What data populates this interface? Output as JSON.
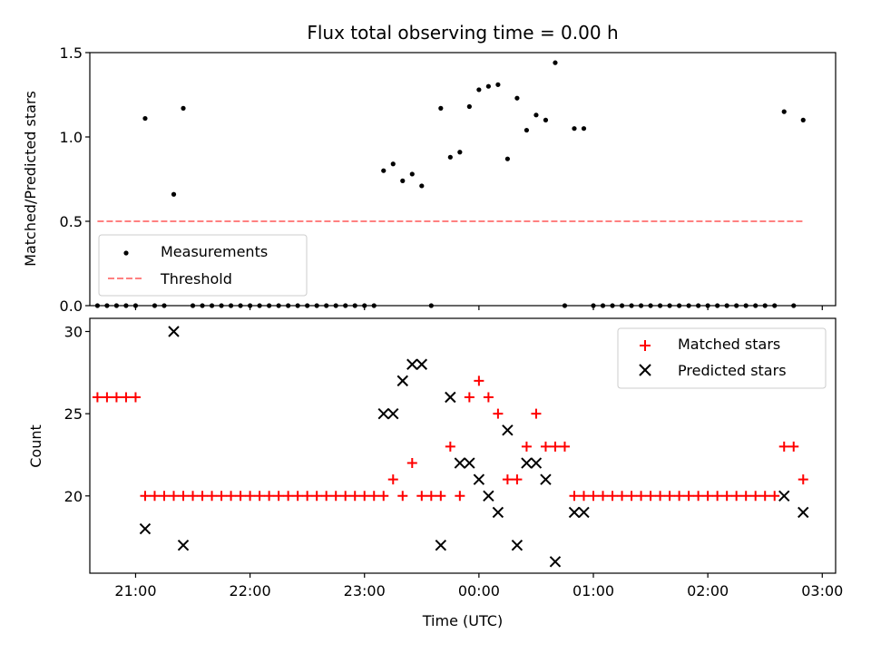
{
  "chart_data": [
    {
      "type": "scatter",
      "title": "Flux total observing time = 0.00 h",
      "ylabel": "Matched/Predicted stars",
      "ylim": [
        0,
        1.5
      ],
      "xlim": [
        "20:36",
        "03:07"
      ],
      "grid": false,
      "legend": {
        "position": "lower-left",
        "entries": [
          "Measurements",
          "Threshold"
        ]
      },
      "yticks": [
        "0.0",
        "0.5",
        "1.0",
        "1.5"
      ],
      "series": [
        {
          "name": "Measurements",
          "marker": "dot",
          "color": "#000000",
          "points": [
            [
              "20:40",
              0
            ],
            [
              "20:45",
              0
            ],
            [
              "20:50",
              0
            ],
            [
              "20:55",
              0
            ],
            [
              "21:00",
              0
            ],
            [
              "21:05",
              1.11
            ],
            [
              "21:10",
              0
            ],
            [
              "21:15",
              0
            ],
            [
              "21:20",
              0.66
            ],
            [
              "21:25",
              1.17
            ],
            [
              "21:30",
              0
            ],
            [
              "21:35",
              0
            ],
            [
              "21:40",
              0
            ],
            [
              "21:45",
              0
            ],
            [
              "21:50",
              0
            ],
            [
              "21:55",
              0
            ],
            [
              "22:00",
              0
            ],
            [
              "22:05",
              0
            ],
            [
              "22:10",
              0
            ],
            [
              "22:15",
              0
            ],
            [
              "22:20",
              0
            ],
            [
              "22:25",
              0
            ],
            [
              "22:30",
              0
            ],
            [
              "22:35",
              0
            ],
            [
              "22:40",
              0
            ],
            [
              "22:45",
              0
            ],
            [
              "22:50",
              0
            ],
            [
              "22:55",
              0
            ],
            [
              "23:00",
              0
            ],
            [
              "23:05",
              0
            ],
            [
              "23:10",
              0.8
            ],
            [
              "23:15",
              0.84
            ],
            [
              "23:20",
              0.74
            ],
            [
              "23:25",
              0.78
            ],
            [
              "23:30",
              0.71
            ],
            [
              "23:35",
              0
            ],
            [
              "23:40",
              1.17
            ],
            [
              "23:45",
              0.88
            ],
            [
              "23:50",
              0.91
            ],
            [
              "23:55",
              1.18
            ],
            [
              "00:00",
              1.28
            ],
            [
              "00:05",
              1.3
            ],
            [
              "00:10",
              1.31
            ],
            [
              "00:15",
              0.87
            ],
            [
              "00:20",
              1.23
            ],
            [
              "00:25",
              1.04
            ],
            [
              "00:30",
              1.13
            ],
            [
              "00:35",
              1.1
            ],
            [
              "00:40",
              1.44
            ],
            [
              "00:45",
              0
            ],
            [
              "00:50",
              1.05
            ],
            [
              "00:55",
              1.05
            ],
            [
              "01:00",
              0
            ],
            [
              "01:05",
              0
            ],
            [
              "01:10",
              0
            ],
            [
              "01:15",
              0
            ],
            [
              "01:20",
              0
            ],
            [
              "01:25",
              0
            ],
            [
              "01:30",
              0
            ],
            [
              "01:35",
              0
            ],
            [
              "01:40",
              0
            ],
            [
              "01:45",
              0
            ],
            [
              "01:50",
              0
            ],
            [
              "01:55",
              0
            ],
            [
              "02:00",
              0
            ],
            [
              "02:05",
              0
            ],
            [
              "02:10",
              0
            ],
            [
              "02:15",
              0
            ],
            [
              "02:20",
              0
            ],
            [
              "02:25",
              0
            ],
            [
              "02:30",
              0
            ],
            [
              "02:35",
              0
            ],
            [
              "02:40",
              1.15
            ],
            [
              "02:45",
              0
            ],
            [
              "02:50",
              1.1
            ]
          ]
        },
        {
          "name": "Threshold",
          "type": "line",
          "style": "dashed",
          "color": "#ff8080",
          "points": [
            [
              "20:40",
              0.5
            ],
            [
              "02:50",
              0.5
            ]
          ]
        }
      ]
    },
    {
      "type": "scatter",
      "xlabel": "Time (UTC)",
      "ylabel": "Count",
      "ylim": [
        15.3,
        30.8
      ],
      "xlim": [
        "20:36",
        "03:07"
      ],
      "grid": false,
      "legend": {
        "position": "upper-right",
        "entries": [
          "Matched stars",
          "Predicted stars"
        ]
      },
      "xticks": [
        "21:00",
        "22:00",
        "23:00",
        "00:00",
        "01:00",
        "02:00",
        "03:00"
      ],
      "yticks": [
        "20",
        "25",
        "30"
      ],
      "series": [
        {
          "name": "Matched stars",
          "marker": "plus",
          "color": "#ff0000",
          "points": [
            [
              "20:40",
              26
            ],
            [
              "20:45",
              26
            ],
            [
              "20:50",
              26
            ],
            [
              "20:55",
              26
            ],
            [
              "21:00",
              26
            ],
            [
              "21:05",
              20
            ],
            [
              "21:10",
              20
            ],
            [
              "21:15",
              20
            ],
            [
              "21:20",
              20
            ],
            [
              "21:25",
              20
            ],
            [
              "21:30",
              20
            ],
            [
              "21:35",
              20
            ],
            [
              "21:40",
              20
            ],
            [
              "21:45",
              20
            ],
            [
              "21:50",
              20
            ],
            [
              "21:55",
              20
            ],
            [
              "22:00",
              20
            ],
            [
              "22:05",
              20
            ],
            [
              "22:10",
              20
            ],
            [
              "22:15",
              20
            ],
            [
              "22:20",
              20
            ],
            [
              "22:25",
              20
            ],
            [
              "22:30",
              20
            ],
            [
              "22:35",
              20
            ],
            [
              "22:40",
              20
            ],
            [
              "22:45",
              20
            ],
            [
              "22:50",
              20
            ],
            [
              "22:55",
              20
            ],
            [
              "23:00",
              20
            ],
            [
              "23:05",
              20
            ],
            [
              "23:10",
              20
            ],
            [
              "23:15",
              21
            ],
            [
              "23:20",
              20
            ],
            [
              "23:25",
              22
            ],
            [
              "23:30",
              20
            ],
            [
              "23:35",
              20
            ],
            [
              "23:40",
              20
            ],
            [
              "23:45",
              23
            ],
            [
              "23:50",
              20
            ],
            [
              "23:55",
              26
            ],
            [
              "00:00",
              27
            ],
            [
              "00:05",
              26
            ],
            [
              "00:10",
              25
            ],
            [
              "00:15",
              21
            ],
            [
              "00:20",
              21
            ],
            [
              "00:25",
              23
            ],
            [
              "00:30",
              25
            ],
            [
              "00:35",
              23
            ],
            [
              "00:40",
              23
            ],
            [
              "00:45",
              23
            ],
            [
              "00:50",
              20
            ],
            [
              "00:55",
              20
            ],
            [
              "01:00",
              20
            ],
            [
              "01:05",
              20
            ],
            [
              "01:10",
              20
            ],
            [
              "01:15",
              20
            ],
            [
              "01:20",
              20
            ],
            [
              "01:25",
              20
            ],
            [
              "01:30",
              20
            ],
            [
              "01:35",
              20
            ],
            [
              "01:40",
              20
            ],
            [
              "01:45",
              20
            ],
            [
              "01:50",
              20
            ],
            [
              "01:55",
              20
            ],
            [
              "02:00",
              20
            ],
            [
              "02:05",
              20
            ],
            [
              "02:10",
              20
            ],
            [
              "02:15",
              20
            ],
            [
              "02:20",
              20
            ],
            [
              "02:25",
              20
            ],
            [
              "02:30",
              20
            ],
            [
              "02:35",
              20
            ],
            [
              "02:40",
              23
            ],
            [
              "02:45",
              23
            ],
            [
              "02:50",
              21
            ]
          ]
        },
        {
          "name": "Predicted stars",
          "marker": "x",
          "color": "#000000",
          "points": [
            [
              "21:05",
              18
            ],
            [
              "21:20",
              30
            ],
            [
              "21:25",
              17
            ],
            [
              "23:10",
              25
            ],
            [
              "23:15",
              25
            ],
            [
              "23:20",
              27
            ],
            [
              "23:25",
              28
            ],
            [
              "23:30",
              28
            ],
            [
              "23:40",
              17
            ],
            [
              "23:45",
              26
            ],
            [
              "23:50",
              22
            ],
            [
              "23:55",
              22
            ],
            [
              "00:00",
              21
            ],
            [
              "00:05",
              20
            ],
            [
              "00:10",
              19
            ],
            [
              "00:15",
              24
            ],
            [
              "00:20",
              17
            ],
            [
              "00:25",
              22
            ],
            [
              "00:30",
              22
            ],
            [
              "00:35",
              21
            ],
            [
              "00:40",
              16
            ],
            [
              "00:50",
              19
            ],
            [
              "00:55",
              19
            ],
            [
              "02:40",
              20
            ],
            [
              "02:50",
              19
            ]
          ]
        }
      ]
    }
  ]
}
